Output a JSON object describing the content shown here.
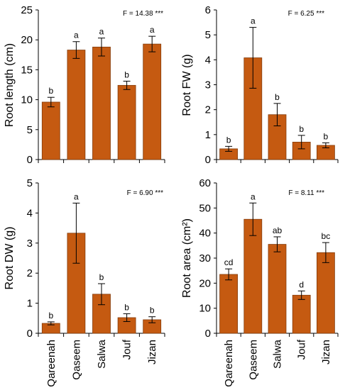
{
  "categories": [
    "Qareenah",
    "Qaseem",
    "Salwa",
    "Jouf",
    "Jizan"
  ],
  "colors": {
    "bar": "#C55A11",
    "bar_edge": "#843C0C",
    "axis": "#000000"
  },
  "chart_data": [
    {
      "type": "bar",
      "title": "",
      "ylabel": "Root length (cm)",
      "ylim": [
        0,
        25
      ],
      "yticks": [
        0,
        5,
        10,
        15,
        20,
        25
      ],
      "categories": [
        "Qareenah",
        "Qaseem",
        "Salwa",
        "Jouf",
        "Jizan"
      ],
      "values": [
        9.6,
        18.3,
        18.8,
        12.4,
        19.3
      ],
      "errors": [
        0.8,
        1.4,
        1.5,
        0.7,
        1.3
      ],
      "letters": [
        "b",
        "a",
        "a",
        "b",
        "a"
      ],
      "annotation": "F = 14.38 ***"
    },
    {
      "type": "bar",
      "title": "",
      "ylabel": "Root FW (g)",
      "ylim": [
        0,
        6
      ],
      "yticks": [
        0,
        1,
        2,
        3,
        4,
        5,
        6
      ],
      "categories": [
        "Qareenah",
        "Qaseem",
        "Salwa",
        "Jouf",
        "Jizan"
      ],
      "values": [
        0.43,
        4.08,
        1.8,
        0.7,
        0.57
      ],
      "errors": [
        0.1,
        1.22,
        0.45,
        0.27,
        0.1
      ],
      "letters": [
        "b",
        "a",
        "b",
        "b",
        "b"
      ],
      "annotation": "F = 6.25 ***"
    },
    {
      "type": "bar",
      "title": "",
      "ylabel": "Root DW (g)",
      "ylim": [
        0,
        5
      ],
      "yticks": [
        0,
        1,
        2,
        3,
        4,
        5
      ],
      "categories": [
        "Qareenah",
        "Qaseem",
        "Salwa",
        "Jouf",
        "Jizan"
      ],
      "values": [
        0.33,
        3.33,
        1.3,
        0.52,
        0.45
      ],
      "errors": [
        0.05,
        1.0,
        0.35,
        0.13,
        0.1
      ],
      "letters": [
        "b",
        "a",
        "b",
        "b",
        "b"
      ],
      "annotation": "F = 6.90 ***"
    },
    {
      "type": "bar",
      "title": "",
      "ylabel": "Root area (cm²)",
      "ylim": [
        0,
        60
      ],
      "yticks": [
        0,
        10,
        20,
        30,
        40,
        50,
        60
      ],
      "categories": [
        "Qareenah",
        "Qaseem",
        "Salwa",
        "Jouf",
        "Jizan"
      ],
      "values": [
        23.5,
        45.5,
        35.5,
        15.2,
        32.2
      ],
      "errors": [
        2.2,
        6.5,
        3.0,
        1.7,
        4.0
      ],
      "letters": [
        "cd",
        "a",
        "ab",
        "d",
        "bc"
      ],
      "annotation": "F = 8.11 ***"
    }
  ]
}
